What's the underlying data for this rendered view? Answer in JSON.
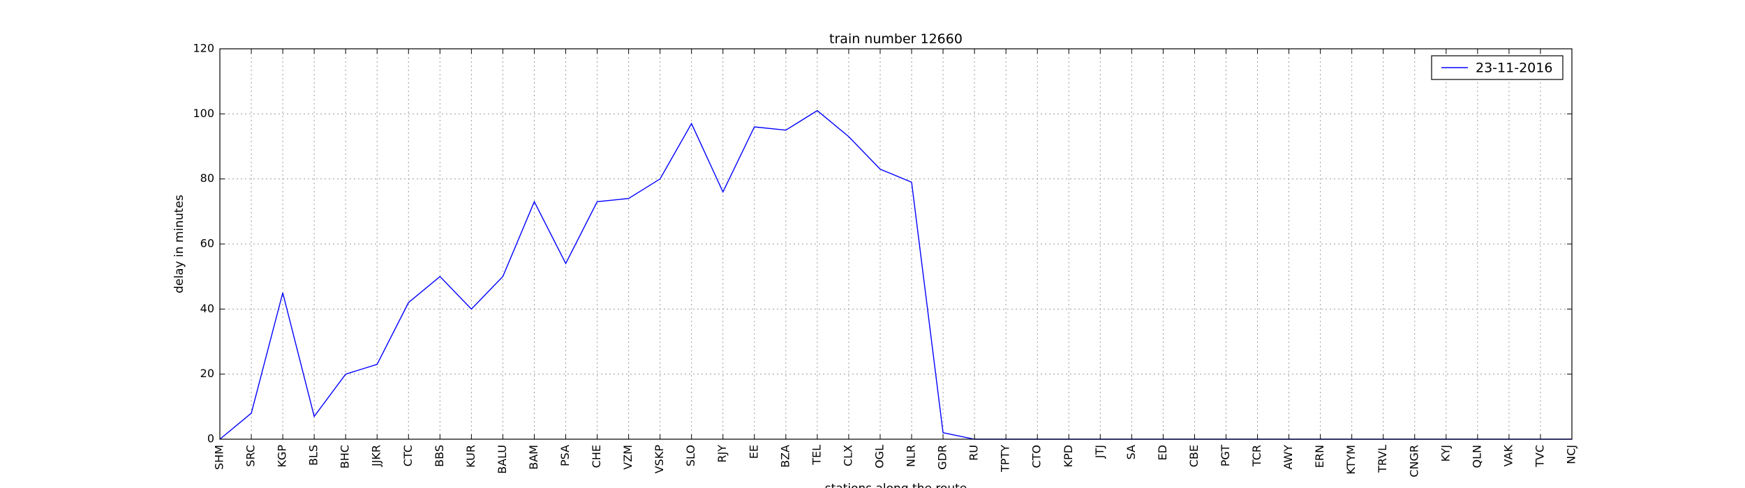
{
  "chart_data": {
    "type": "line",
    "title": "train number 12660",
    "xlabel": "stations along the route",
    "ylabel": "delay in minutes",
    "ylim": [
      0,
      120
    ],
    "yticks": [
      "0",
      "20",
      "40",
      "60",
      "80",
      "100",
      "120"
    ],
    "grid": true,
    "legend_position": "top-right",
    "categories": [
      "SHM",
      "SRC",
      "KGP",
      "BLS",
      "BHC",
      "JJKR",
      "CTC",
      "BBS",
      "KUR",
      "BALU",
      "BAM",
      "PSA",
      "CHE",
      "VZM",
      "VSKP",
      "SLO",
      "RJY",
      "EE",
      "BZA",
      "TEL",
      "CLX",
      "OGL",
      "NLR",
      "GDR",
      "RU",
      "TPTY",
      "CTO",
      "KPD",
      "JTJ",
      "SA",
      "ED",
      "CBE",
      "PGT",
      "TCR",
      "AWY",
      "ERN",
      "KTYM",
      "TRVL",
      "CNGR",
      "KYJ",
      "QLN",
      "VAK",
      "TVC",
      "NCJ"
    ],
    "series": [
      {
        "name": "23-11-2016",
        "color": "#0000ff",
        "values": [
          0,
          8,
          45,
          7,
          20,
          23,
          42,
          50,
          40,
          50,
          73,
          54,
          73,
          74,
          80,
          97,
          76,
          96,
          95,
          101,
          93,
          83,
          79,
          2,
          0,
          0,
          0,
          0,
          0,
          0,
          0,
          0,
          0,
          0,
          0,
          0,
          0,
          0,
          0,
          0,
          0,
          0,
          0,
          0
        ]
      }
    ]
  }
}
